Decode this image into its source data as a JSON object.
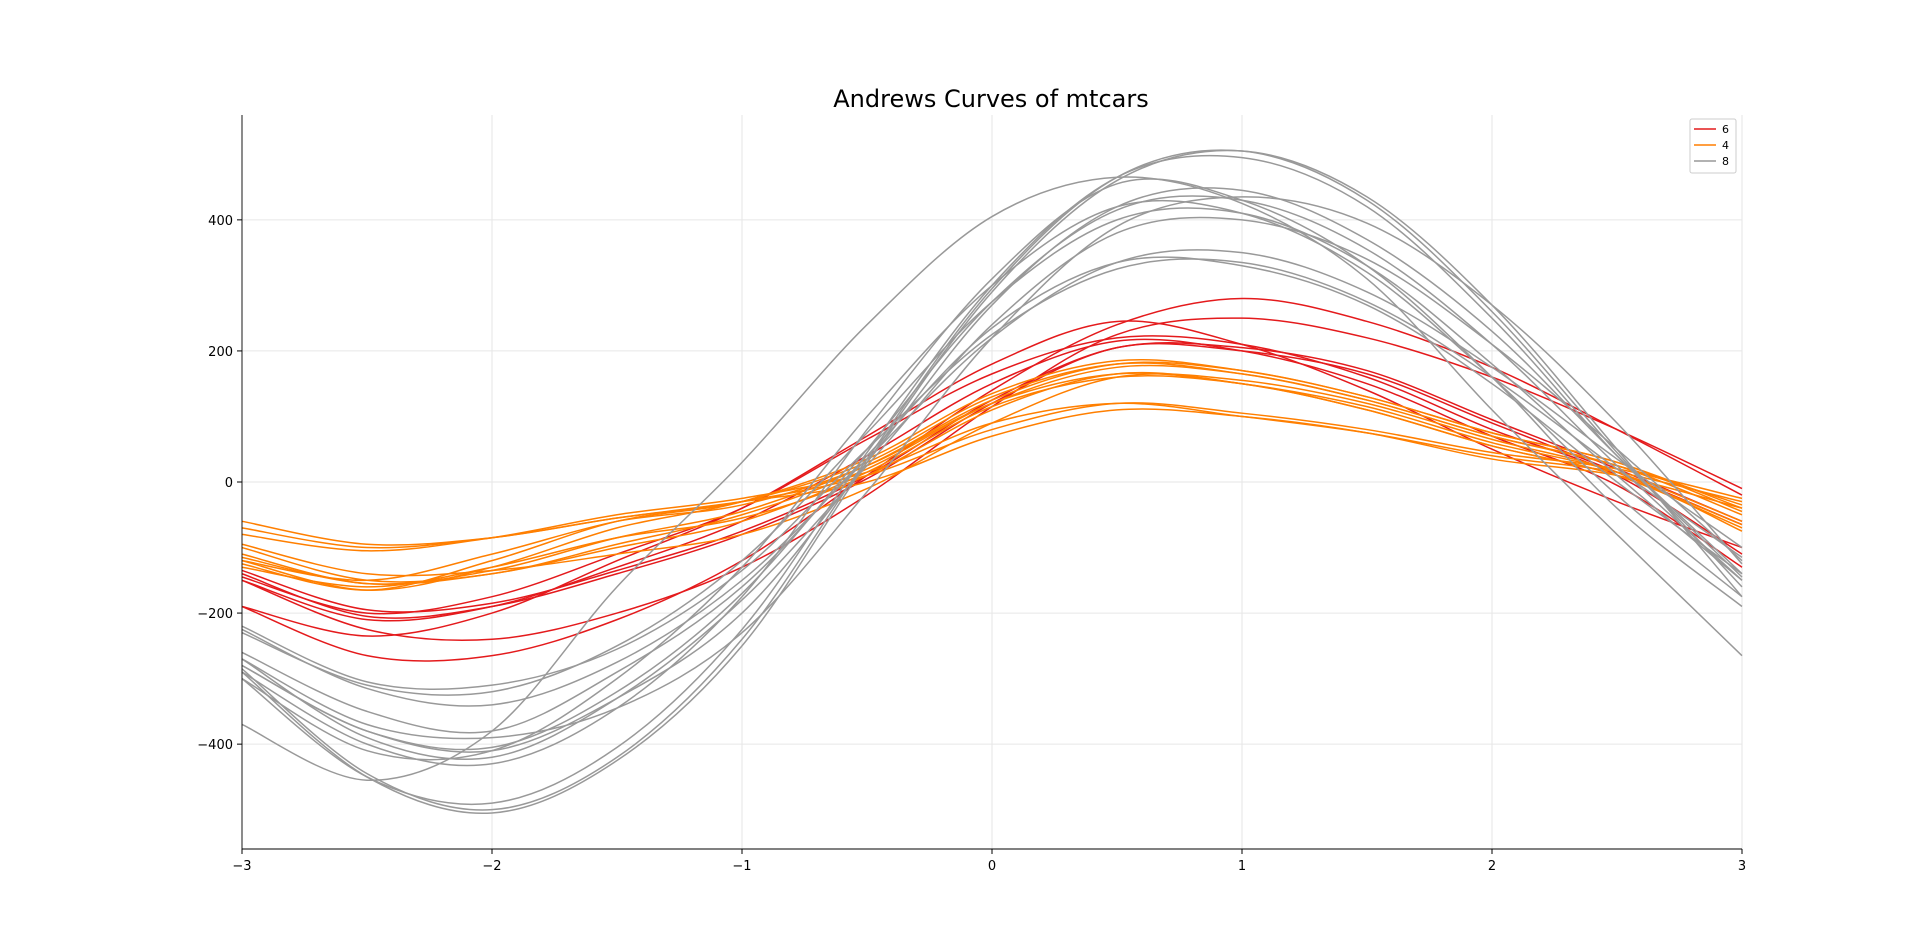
{
  "chart_data": {
    "type": "line",
    "title": "Andrews Curves of mtcars",
    "xlabel": "",
    "ylabel": "",
    "xlim": [
      -3,
      3
    ],
    "ylim": [
      -560,
      560
    ],
    "x_ticks": [
      {
        "value": -3,
        "label": "−3"
      },
      {
        "value": -2,
        "label": "−2"
      },
      {
        "value": -1,
        "label": "−1"
      },
      {
        "value": 0,
        "label": "0"
      },
      {
        "value": 1,
        "label": "1"
      },
      {
        "value": 2,
        "label": "2"
      },
      {
        "value": 3,
        "label": "3"
      }
    ],
    "y_ticks": [
      {
        "value": -400,
        "label": "−400"
      },
      {
        "value": -200,
        "label": "−200"
      },
      {
        "value": 0,
        "label": "0"
      },
      {
        "value": 200,
        "label": "200"
      },
      {
        "value": 400,
        "label": "400"
      }
    ],
    "grid": true,
    "legend": {
      "placement": "top-right",
      "entries": [
        {
          "label": "6",
          "color": "#e41a1c"
        },
        {
          "label": "4",
          "color": "#ff7f00"
        },
        {
          "label": "8",
          "color": "#999999"
        }
      ]
    },
    "x_samples": [
      -3,
      -2.5,
      -2,
      -1.5,
      -1,
      -0.5,
      0,
      0.5,
      1,
      1.5,
      2,
      2.5,
      3
    ],
    "series": [
      {
        "name": "6",
        "color": "#e41a1c",
        "y": [
          -135,
          -195,
          -185,
          -135,
          -75,
          10,
          125,
          205,
          205,
          170,
          95,
          20,
          -60
        ]
      },
      {
        "name": "6",
        "color": "#e41a1c",
        "y": [
          -140,
          -205,
          -190,
          -140,
          -80,
          5,
          120,
          205,
          200,
          165,
          90,
          15,
          -65
        ]
      },
      {
        "name": "6",
        "color": "#e41a1c",
        "y": [
          -190,
          -235,
          -200,
          -120,
          -40,
          70,
          180,
          245,
          210,
          140,
          50,
          -30,
          -100
        ]
      },
      {
        "name": "6",
        "color": "#e41a1c",
        "y": [
          -150,
          -225,
          -240,
          -200,
          -130,
          -20,
          115,
          225,
          250,
          220,
          160,
          80,
          -10
        ]
      },
      {
        "name": "6",
        "color": "#e41a1c",
        "y": [
          -190,
          -265,
          -265,
          -210,
          -120,
          10,
          140,
          240,
          280,
          245,
          175,
          80,
          -20
        ]
      },
      {
        "name": "6",
        "color": "#e41a1c",
        "y": [
          -145,
          -200,
          -175,
          -110,
          -40,
          65,
          165,
          220,
          210,
          160,
          80,
          10,
          -110
        ]
      },
      {
        "name": "6",
        "color": "#e41a1c",
        "y": [
          -150,
          -210,
          -190,
          -130,
          -60,
          40,
          150,
          215,
          200,
          150,
          70,
          -5,
          -130
        ]
      },
      {
        "name": "4",
        "color": "#ff7f00",
        "y": [
          -60,
          -95,
          -85,
          -55,
          -30,
          10,
          80,
          120,
          105,
          80,
          45,
          20,
          -25
        ]
      },
      {
        "name": "4",
        "color": "#ff7f00",
        "y": [
          -80,
          -105,
          -85,
          -50,
          -25,
          15,
          90,
          120,
          100,
          75,
          40,
          15,
          -30
        ]
      },
      {
        "name": "4",
        "color": "#ff7f00",
        "y": [
          -100,
          -150,
          -140,
          -95,
          -50,
          20,
          120,
          175,
          165,
          125,
          70,
          25,
          -35
        ]
      },
      {
        "name": "4",
        "color": "#ff7f00",
        "y": [
          -110,
          -155,
          -135,
          -85,
          -45,
          25,
          125,
          180,
          170,
          130,
          75,
          30,
          -40
        ]
      },
      {
        "name": "4",
        "color": "#ff7f00",
        "y": [
          -120,
          -165,
          -130,
          -70,
          -30,
          35,
          135,
          185,
          170,
          130,
          75,
          30,
          -45
        ]
      },
      {
        "name": "4",
        "color": "#ff7f00",
        "y": [
          -125,
          -165,
          -120,
          -60,
          -30,
          30,
          130,
          180,
          165,
          125,
          70,
          25,
          -50
        ]
      },
      {
        "name": "4",
        "color": "#ff7f00",
        "y": [
          -120,
          -150,
          -110,
          -60,
          -35,
          25,
          120,
          165,
          150,
          115,
          60,
          15,
          -60
        ]
      },
      {
        "name": "4",
        "color": "#ff7f00",
        "y": [
          -115,
          -155,
          -140,
          -100,
          -60,
          15,
          115,
          160,
          150,
          110,
          55,
          10,
          -65
        ]
      },
      {
        "name": "4",
        "color": "#ff7f00",
        "y": [
          -130,
          -160,
          -130,
          -85,
          -55,
          10,
          110,
          165,
          150,
          110,
          55,
          10,
          -70
        ]
      },
      {
        "name": "4",
        "color": "#ff7f00",
        "y": [
          -70,
          -100,
          -85,
          -55,
          -30,
          0,
          70,
          110,
          100,
          75,
          35,
          10,
          -40
        ]
      },
      {
        "name": "4",
        "color": "#ff7f00",
        "y": [
          -95,
          -140,
          -135,
          -110,
          -80,
          -10,
          90,
          160,
          155,
          120,
          65,
          15,
          -75
        ]
      },
      {
        "name": "8",
        "color": "#999999",
        "y": [
          -290,
          -400,
          -430,
          -345,
          -175,
          80,
          310,
          455,
          430,
          330,
          160,
          -40,
          -190
        ]
      },
      {
        "name": "8",
        "color": "#999999",
        "y": [
          -300,
          -410,
          -410,
          -300,
          -130,
          100,
          300,
          420,
          410,
          320,
          160,
          -20,
          -175
        ]
      },
      {
        "name": "8",
        "color": "#999999",
        "y": [
          -230,
          -310,
          -320,
          -250,
          -120,
          75,
          275,
          400,
          410,
          330,
          180,
          10,
          -150
        ]
      },
      {
        "name": "8",
        "color": "#999999",
        "y": [
          -220,
          -305,
          -310,
          -255,
          -135,
          50,
          225,
          325,
          335,
          275,
          160,
          20,
          -115
        ]
      },
      {
        "name": "8",
        "color": "#999999",
        "y": [
          -225,
          -315,
          -340,
          -275,
          -150,
          35,
          220,
          335,
          350,
          290,
          175,
          35,
          -100
        ]
      },
      {
        "name": "8",
        "color": "#999999",
        "y": [
          -270,
          -370,
          -390,
          -345,
          -230,
          -15,
          220,
          390,
          435,
          395,
          270,
          90,
          -125
        ]
      },
      {
        "name": "8",
        "color": "#999999",
        "y": [
          -280,
          -380,
          -410,
          -330,
          -200,
          30,
          270,
          420,
          445,
          370,
          230,
          40,
          -140
        ]
      },
      {
        "name": "8",
        "color": "#999999",
        "y": [
          -300,
          -450,
          -490,
          -405,
          -225,
          45,
          300,
          465,
          495,
          420,
          250,
          40,
          -145
        ]
      },
      {
        "name": "8",
        "color": "#999999",
        "y": [
          -285,
          -445,
          -500,
          -420,
          -240,
          35,
          295,
          465,
          505,
          430,
          260,
          45,
          -160
        ]
      },
      {
        "name": "8",
        "color": "#999999",
        "y": [
          -290,
          -450,
          -505,
          -425,
          -250,
          30,
          290,
          460,
          505,
          435,
          270,
          50,
          -175
        ]
      },
      {
        "name": "8",
        "color": "#999999",
        "y": [
          -370,
          -455,
          -380,
          -160,
          30,
          240,
          405,
          465,
          425,
          310,
          110,
          -80,
          -265
        ]
      },
      {
        "name": "8",
        "color": "#999999",
        "y": [
          -260,
          -350,
          -380,
          -290,
          -160,
          40,
          235,
          335,
          330,
          270,
          150,
          0,
          -140
        ]
      },
      {
        "name": "8",
        "color": "#999999",
        "y": [
          -270,
          -390,
          -420,
          -330,
          -180,
          25,
          240,
          380,
          400,
          340,
          210,
          50,
          -120
        ]
      },
      {
        "name": "8",
        "color": "#999999",
        "y": [
          -280,
          -380,
          -405,
          -320,
          -170,
          50,
          275,
          415,
          430,
          355,
          210,
          25,
          -150
        ]
      }
    ]
  }
}
